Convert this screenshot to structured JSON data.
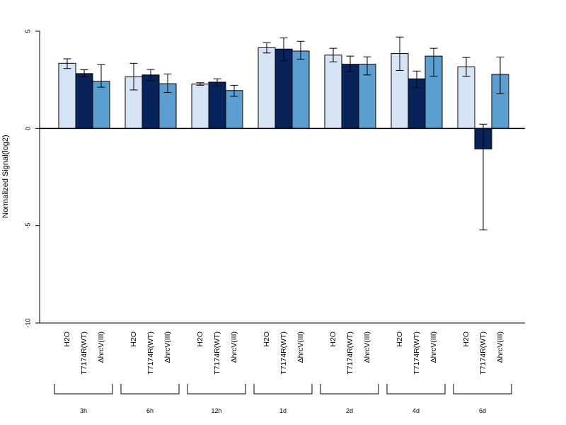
{
  "chart_data": {
    "type": "bar",
    "ylabel": "Normalized Signal(log2)",
    "ylim": [
      -10,
      5
    ],
    "yticks": [
      5,
      0,
      -5,
      -10
    ],
    "ytick_labels": [
      "5",
      "0",
      "-5",
      "-10"
    ],
    "groups": [
      "3h",
      "6h",
      "12h",
      "1d",
      "2d",
      "4d",
      "6d"
    ],
    "series": [
      {
        "name": "H2O",
        "color": "#d6e5f5",
        "values": [
          3.35,
          2.65,
          2.28,
          4.15,
          3.77,
          3.85,
          3.17
        ],
        "error_low": [
          3.08,
          1.98,
          2.22,
          3.88,
          3.42,
          2.98,
          2.68
        ],
        "error_high": [
          3.58,
          3.35,
          2.35,
          4.4,
          4.12,
          4.7,
          3.65
        ]
      },
      {
        "name": "T7174R(WT)",
        "color": "#08235a",
        "values": [
          2.82,
          2.75,
          2.38,
          4.08,
          3.3,
          2.55,
          -1.05
        ],
        "error_low": [
          2.65,
          2.45,
          2.18,
          3.48,
          2.92,
          2.1,
          -5.22
        ],
        "error_high": [
          3.02,
          3.03,
          2.55,
          4.65,
          3.72,
          2.95,
          0.22
        ]
      },
      {
        "name": "ΔhrcV(III)",
        "color": "#5b9fd0",
        "values": [
          2.42,
          2.3,
          1.95,
          3.98,
          3.3,
          3.72,
          2.78
        ],
        "error_low": [
          2.12,
          1.85,
          1.65,
          3.55,
          2.75,
          2.68,
          1.78
        ],
        "error_high": [
          3.28,
          2.8,
          2.22,
          4.48,
          3.68,
          4.12,
          3.67
        ]
      }
    ],
    "bar_labels": [
      "H2O",
      "T7174R(WT)",
      "ΔhrcV(III)"
    ],
    "grid": false,
    "legend": "none"
  }
}
